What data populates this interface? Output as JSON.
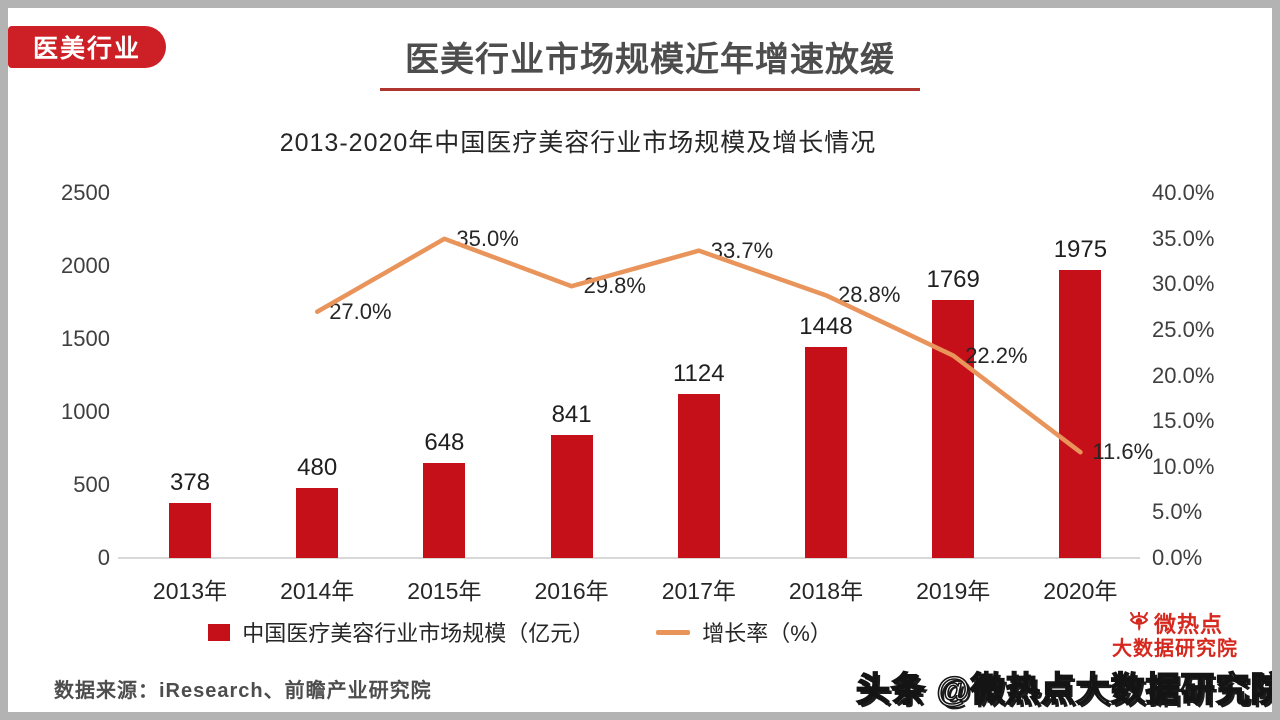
{
  "header": {
    "badge": "医美行业",
    "title": "医美行业市场规模近年增速放缓"
  },
  "colors": {
    "bar": "#c5101б-placeholder-unused",
    "bar_red": "#c5101a",
    "badge_red": "#cd2026",
    "line_orange": "#e8945a",
    "logo_red": "#d5281e"
  },
  "chart_data": {
    "type": "bar+line",
    "title": "2013-2020年中国医疗美容行业市场规模及增长情况",
    "categories": [
      "2013年",
      "2014年",
      "2015年",
      "2016年",
      "2017年",
      "2018年",
      "2019年",
      "2020年"
    ],
    "series": [
      {
        "name": "中国医疗美容行业市场规模（亿元）",
        "type": "bar",
        "axis": "left",
        "color": "#c5101a",
        "values": [
          378,
          480,
          648,
          841,
          1124,
          1448,
          1769,
          1975
        ]
      },
      {
        "name": "增长率（%）",
        "type": "line",
        "axis": "right",
        "color": "#e8945a",
        "values": [
          null,
          27.0,
          35.0,
          29.8,
          33.7,
          28.8,
          22.2,
          11.6
        ],
        "labels": [
          null,
          "27.0%",
          "35.0%",
          "29.8%",
          "33.7%",
          "28.8%",
          "22.2%",
          "11.6%"
        ]
      }
    ],
    "left_axis": {
      "ticks": [
        "0",
        "500",
        "1000",
        "1500",
        "2000",
        "2500"
      ],
      "values": [
        0,
        500,
        1000,
        1500,
        2000,
        2500
      ],
      "min": 0,
      "max": 2500
    },
    "right_axis": {
      "ticks": [
        "0.0%",
        "5.0%",
        "10.0%",
        "15.0%",
        "20.0%",
        "25.0%",
        "30.0%",
        "35.0%",
        "40.0%"
      ],
      "values": [
        0,
        5,
        10,
        15,
        20,
        25,
        30,
        35,
        40
      ],
      "min": 0,
      "max": 40
    },
    "grid": false,
    "legend_position": "bottom"
  },
  "legend": {
    "bar_label": "中国医疗美容行业市场规模（亿元）",
    "line_label": "增长率（%）"
  },
  "footer": {
    "source": "数据来源：iResearch、前瞻产业研究院",
    "watermark": "头条 @微热点大数据研究院",
    "logo_name": "微热点",
    "logo_sub": "大数据研究院"
  }
}
